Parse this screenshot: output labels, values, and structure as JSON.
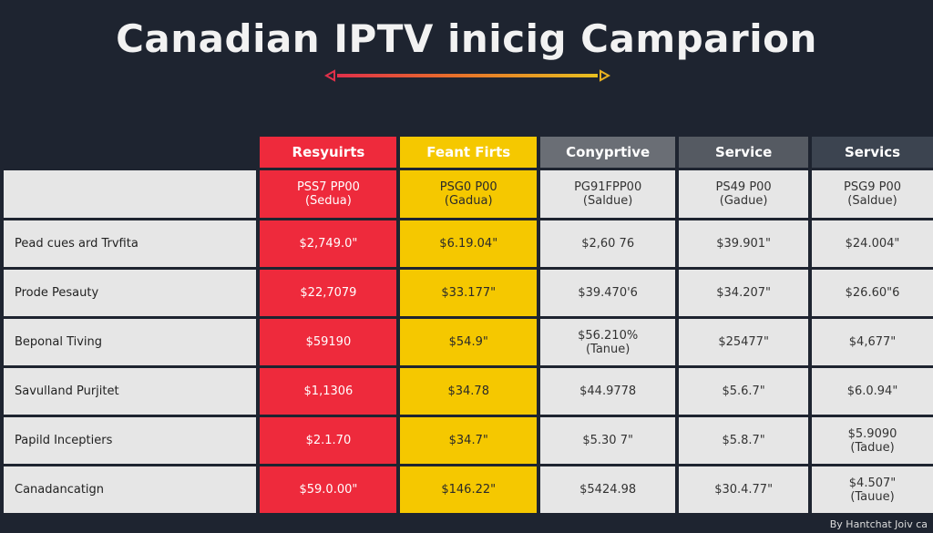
{
  "title": "Canadian IPTV inicig Camparion",
  "colors": {
    "background": "#1e2430",
    "red": "#ee2a3c",
    "yellow": "#f5c800",
    "gray1": "#6a6e75",
    "gray2": "#555a62",
    "gray3": "#3c4450",
    "cell": "#e6e6e6"
  },
  "table": {
    "headers": [
      "",
      "Resyuirts",
      "Feant Firts",
      "Conyprtive",
      "Service",
      "Servics"
    ],
    "subheader": [
      [
        "",
        ""
      ],
      [
        "PSS7 PP00",
        "(Sedua)"
      ],
      [
        "PSG0 P00",
        "(Gadua)"
      ],
      [
        "PG91FPP00",
        "(Saldue)"
      ],
      [
        "PS49 P00",
        "(Gadue)"
      ],
      [
        "PSG9 P00",
        "(Saldue)"
      ]
    ],
    "rows": [
      {
        "label": "Pead cues ard Trvfita",
        "cells": [
          [
            "$2,749.0\"",
            ""
          ],
          [
            "$6.19.04\"",
            ""
          ],
          [
            "$2,60 76",
            ""
          ],
          [
            "$39.901\"",
            ""
          ],
          [
            "$24.004\"",
            ""
          ]
        ]
      },
      {
        "label": "Prode Pesauty",
        "cells": [
          [
            "$22,7079",
            ""
          ],
          [
            "$33.177\"",
            ""
          ],
          [
            "$39.470'6",
            ""
          ],
          [
            "$34.207\"",
            ""
          ],
          [
            "$26.60\"6",
            ""
          ]
        ]
      },
      {
        "label": "Beponal Tiving",
        "cells": [
          [
            "$59190",
            ""
          ],
          [
            "$54.9\"",
            ""
          ],
          [
            "$56.210%",
            "(Tanue)"
          ],
          [
            "$25477\"",
            ""
          ],
          [
            "$4,677\"",
            ""
          ]
        ]
      },
      {
        "label": "Savulland Purjitet",
        "cells": [
          [
            "$1,1306",
            ""
          ],
          [
            "$34.78",
            ""
          ],
          [
            "$44.9778",
            ""
          ],
          [
            "$5.6.7\"",
            ""
          ],
          [
            "$6.0.94\"",
            ""
          ]
        ]
      },
      {
        "label": "Papild Inceptiers",
        "cells": [
          [
            "$2.1.70",
            ""
          ],
          [
            "$34.7\"",
            ""
          ],
          [
            "$5.30 7\"",
            ""
          ],
          [
            "$5.8.7\"",
            ""
          ],
          [
            "$5.9090",
            "(Tadue)"
          ]
        ]
      },
      {
        "label": "Canadancatign",
        "cells": [
          [
            "$59.0.00\"",
            ""
          ],
          [
            "$146.22\"",
            ""
          ],
          [
            "$5424.98",
            ""
          ],
          [
            "$30.4.77\"",
            ""
          ],
          [
            "$4.507\"",
            "(Tauue)"
          ]
        ]
      }
    ]
  },
  "credit": "By Hantchat Joiv ca"
}
